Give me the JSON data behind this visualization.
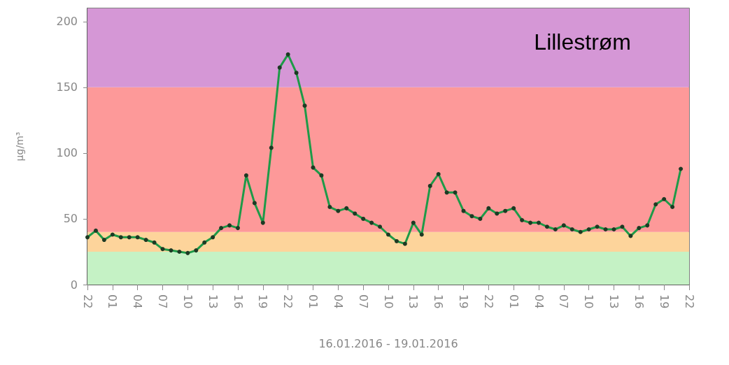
{
  "chart_data": {
    "type": "line",
    "xlabel": "16.01.2016 - 19.01.2016",
    "ylabel": "µg/m³",
    "annotations": [
      "Lillestrøm"
    ],
    "categories": [
      "22",
      null,
      null,
      "01",
      null,
      null,
      "04",
      null,
      null,
      "07",
      null,
      null,
      "10",
      null,
      null,
      "13",
      null,
      null,
      "16",
      null,
      null,
      "19",
      null,
      null,
      "22",
      null,
      null,
      "01",
      null,
      null,
      "04",
      null,
      null,
      "07",
      null,
      null,
      "10",
      null,
      null,
      "13",
      null,
      null,
      "16",
      null,
      null,
      "19",
      null,
      null,
      "22",
      null,
      null,
      "01",
      null,
      null,
      "04",
      null,
      null,
      "07",
      null,
      null,
      "10",
      null,
      null,
      "13",
      null,
      null,
      "16",
      null,
      null,
      "19",
      null,
      null,
      "22"
    ],
    "series": [
      {
        "color": "#1e9a48",
        "values": [
          36,
          41,
          34,
          38,
          36,
          36,
          36,
          34,
          32,
          27,
          26,
          25,
          24,
          26,
          32,
          36,
          43,
          45,
          43,
          83,
          62,
          47,
          104,
          165,
          175,
          161,
          136,
          89,
          83,
          59,
          56,
          58,
          54,
          50,
          47,
          44,
          38,
          33,
          31,
          47,
          38,
          75,
          84,
          70,
          70,
          56,
          52,
          50,
          58,
          54,
          56,
          58,
          49,
          47,
          47,
          44,
          42,
          45,
          42,
          40,
          42,
          44,
          42,
          42,
          44,
          37,
          43,
          45,
          61,
          65,
          59,
          88,
          null
        ]
      }
    ],
    "ylim": [
      0,
      210
    ],
    "yticks": [
      0,
      50,
      100,
      150,
      200
    ],
    "grid": false,
    "marker": "circle",
    "line_style": "solid",
    "bands": [
      {
        "axis": "y",
        "from": 0,
        "to": 25,
        "color": "#c5f2c5"
      },
      {
        "axis": "y",
        "from": 25,
        "to": 40,
        "color": "#fdd49b"
      },
      {
        "axis": "y",
        "from": 40,
        "to": 150,
        "color": "#fd9999"
      },
      {
        "axis": "y",
        "from": 150,
        "to": 210,
        "color": "#d597d6"
      }
    ]
  }
}
